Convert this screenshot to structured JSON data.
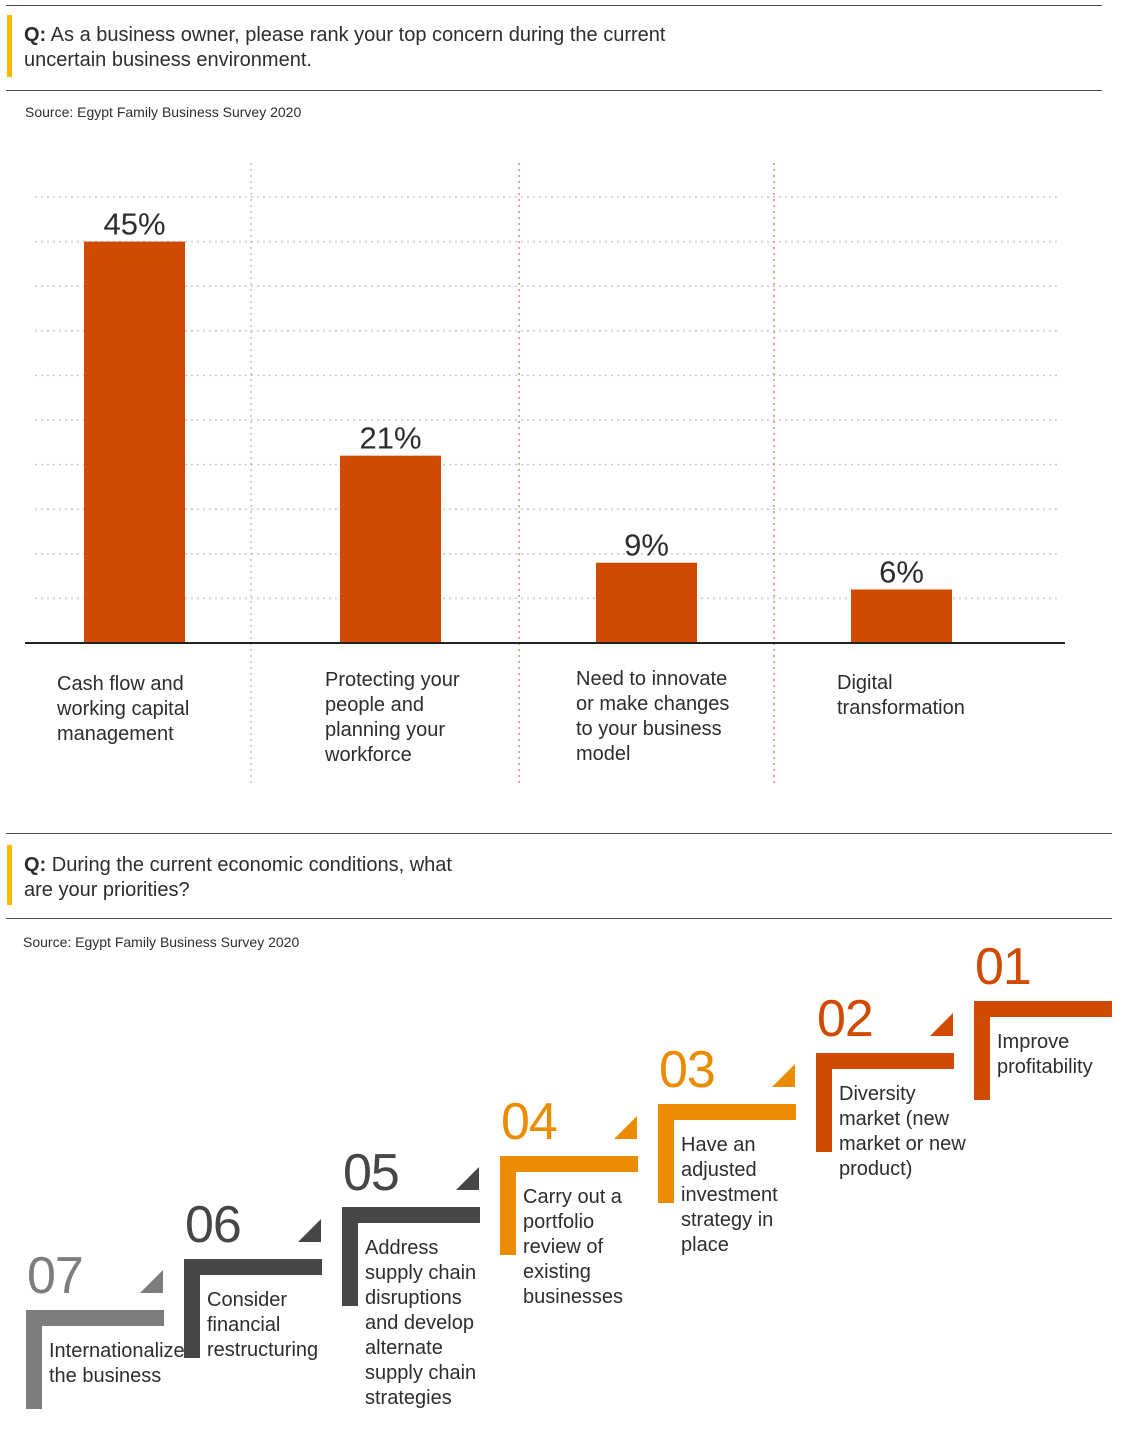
{
  "section1": {
    "question_prefix": "Q:",
    "question": " As a business owner, please rank your top concern during the current uncertain business environment.",
    "source": "Source: Egypt Family Business Survey 2020"
  },
  "section2": {
    "question_prefix": "Q:",
    "question": " During the current economic conditions, what are your priorities?",
    "source": "Source: Egypt Family Business Survey 2020",
    "steps": [
      {
        "number": "07",
        "text": "Internationalize the business",
        "color": "#7d7d7d"
      },
      {
        "number": "06",
        "text": "Consider financial restructuring",
        "color": "#464646"
      },
      {
        "number": "05",
        "text": "Address supply chain disruptions and develop alternate supply chain strategies",
        "color": "#464646"
      },
      {
        "number": "04",
        "text": "Carry out a portfolio review of existing businesses",
        "color": "#eb8c00"
      },
      {
        "number": "03",
        "text": "Have an adjusted investment strategy in place",
        "color": "#eb8c00"
      },
      {
        "number": "02",
        "text": "Diversity market (new market or new product)",
        "color": "#d04a02"
      },
      {
        "number": "01",
        "text": "Improve profitability",
        "color": "#d04a02"
      }
    ]
  },
  "chart_data": {
    "type": "bar",
    "title": "As a business owner, please rank your top concern during the current uncertain business environment.",
    "categories": [
      "Cash flow and working capital management",
      "Protecting your people and planning your workforce",
      "Need to innovate or make changes to your business model",
      "Digital transformation"
    ],
    "values": [
      45,
      21,
      9,
      6
    ],
    "labels": [
      "45%",
      "21%",
      "9%",
      "6%"
    ],
    "xlabel": "",
    "ylabel": "",
    "ylim": [
      0,
      50
    ],
    "grid_step": 5,
    "grid": true,
    "bar_color": "#d04a02"
  }
}
